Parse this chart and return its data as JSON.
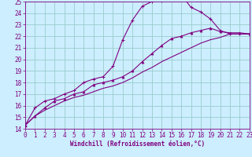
{
  "xlabel": "Windchill (Refroidissement éolien,°C)",
  "bg_color": "#cceeff",
  "line_color": "#800080",
  "grid_color": "#99cccc",
  "xmin": 0,
  "xmax": 23,
  "ymin": 14,
  "ymax": 25,
  "series1_x": [
    0,
    1,
    2,
    3,
    4,
    5,
    6,
    7,
    8,
    9,
    10,
    11,
    12,
    13,
    14,
    15,
    16,
    17,
    18,
    19,
    20,
    21,
    22,
    23
  ],
  "series1_y": [
    14.3,
    15.8,
    16.4,
    16.6,
    17.0,
    17.3,
    18.0,
    18.3,
    18.5,
    19.4,
    21.7,
    23.4,
    24.6,
    25.0,
    25.1,
    25.5,
    25.6,
    24.5,
    24.1,
    23.5,
    22.5,
    22.2,
    22.2,
    22.2
  ],
  "series2_x": [
    0,
    1,
    2,
    3,
    4,
    5,
    6,
    7,
    8,
    9,
    10,
    11,
    12,
    13,
    14,
    15,
    16,
    17,
    18,
    19,
    20,
    21,
    22,
    23
  ],
  "series2_y": [
    14.3,
    15.1,
    15.8,
    16.4,
    16.6,
    17.0,
    17.2,
    17.8,
    18.0,
    18.2,
    18.5,
    19.0,
    19.8,
    20.5,
    21.2,
    21.8,
    22.0,
    22.3,
    22.5,
    22.7,
    22.4,
    22.3,
    22.3,
    22.2
  ],
  "series3_x": [
    0,
    1,
    2,
    3,
    4,
    5,
    6,
    7,
    8,
    9,
    10,
    11,
    12,
    13,
    14,
    15,
    16,
    17,
    18,
    19,
    20,
    21,
    22,
    23
  ],
  "series3_y": [
    14.3,
    15.1,
    15.6,
    16.0,
    16.4,
    16.7,
    16.9,
    17.2,
    17.5,
    17.7,
    18.0,
    18.4,
    18.9,
    19.3,
    19.8,
    20.2,
    20.6,
    21.0,
    21.4,
    21.7,
    21.9,
    22.2,
    22.2,
    22.2
  ],
  "tick_fontsize": 5.5,
  "xlabel_fontsize": 5.5
}
